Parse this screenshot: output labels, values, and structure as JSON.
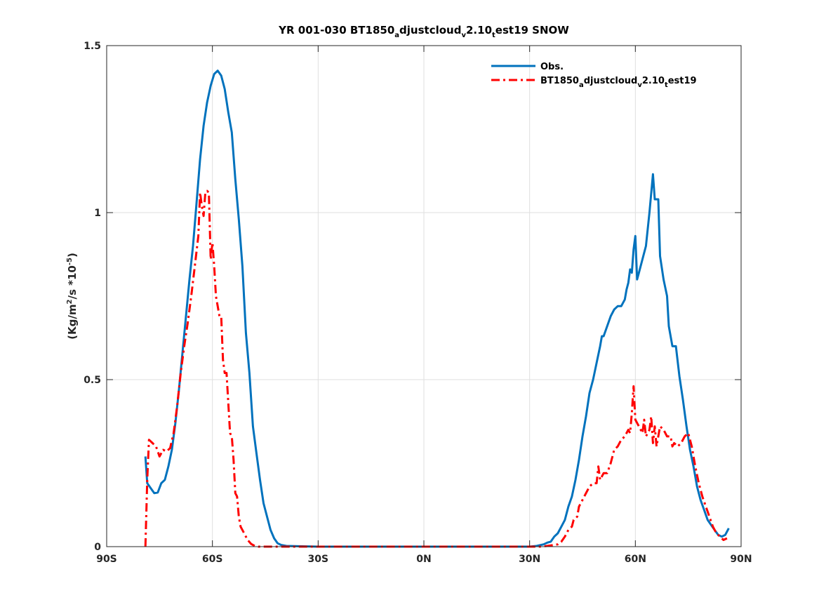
{
  "chart_data": {
    "type": "line",
    "title": {
      "prefix": "YR 001-030 BT1850",
      "sub1": "a",
      "mid1": "djustcloud",
      "sub2": "v",
      "mid2": "2.10",
      "sub3": "t",
      "suffix": "est19 SNOW"
    },
    "ylabel": {
      "part1": "(Kg/m",
      "sup1": "2",
      "part2": "/s *10",
      "sup2": "-5",
      "part3": ")"
    },
    "xlim": [
      -90,
      90
    ],
    "ylim": [
      0,
      1.5
    ],
    "grid": true,
    "legend_position": "top-right",
    "x_ticks": [
      {
        "value": -90,
        "label": "90S"
      },
      {
        "value": -60,
        "label": "60S"
      },
      {
        "value": -30,
        "label": "30S"
      },
      {
        "value": 0,
        "label": "0N"
      },
      {
        "value": 30,
        "label": "30N"
      },
      {
        "value": 60,
        "label": "60N"
      },
      {
        "value": 90,
        "label": "90N"
      }
    ],
    "y_ticks": [
      {
        "value": 0,
        "label": "0"
      },
      {
        "value": 0.5,
        "label": "0.5"
      },
      {
        "value": 1,
        "label": "1"
      },
      {
        "value": 1.5,
        "label": "1.5"
      }
    ],
    "series": [
      {
        "legend": {
          "text": "Obs."
        },
        "color": "#0072BD",
        "style": "solid",
        "points": [
          [
            -79,
            0.27
          ],
          [
            -78.5,
            0.19
          ],
          [
            -77.5,
            0.175
          ],
          [
            -76.5,
            0.16
          ],
          [
            -75.5,
            0.162
          ],
          [
            -74.5,
            0.19
          ],
          [
            -73.5,
            0.2
          ],
          [
            -72.5,
            0.24
          ],
          [
            -71.5,
            0.29
          ],
          [
            -70.5,
            0.37
          ],
          [
            -69.5,
            0.47
          ],
          [
            -68.5,
            0.58
          ],
          [
            -67.5,
            0.69
          ],
          [
            -66.5,
            0.8
          ],
          [
            -65.5,
            0.9
          ],
          [
            -64.5,
            1.03
          ],
          [
            -63.5,
            1.16
          ],
          [
            -62.5,
            1.26
          ],
          [
            -61.5,
            1.33
          ],
          [
            -60.5,
            1.38
          ],
          [
            -59.5,
            1.415
          ],
          [
            -58.5,
            1.425
          ],
          [
            -57.5,
            1.41
          ],
          [
            -56.5,
            1.37
          ],
          [
            -55.5,
            1.3
          ],
          [
            -54.5,
            1.24
          ],
          [
            -53.5,
            1.1
          ],
          [
            -52.5,
            0.98
          ],
          [
            -51.5,
            0.84
          ],
          [
            -50.5,
            0.64
          ],
          [
            -49.5,
            0.52
          ],
          [
            -48.5,
            0.36
          ],
          [
            -47.5,
            0.28
          ],
          [
            -46.5,
            0.2
          ],
          [
            -45.5,
            0.13
          ],
          [
            -44.5,
            0.09
          ],
          [
            -43.5,
            0.05
          ],
          [
            -42.5,
            0.025
          ],
          [
            -41.5,
            0.01
          ],
          [
            -40.5,
            0.005
          ],
          [
            -39,
            0.002
          ],
          [
            -30,
            0
          ],
          [
            0,
            0
          ],
          [
            29,
            0
          ],
          [
            30,
            0
          ],
          [
            32,
            0.002
          ],
          [
            34,
            0.007
          ],
          [
            35,
            0.012
          ],
          [
            36,
            0.015
          ],
          [
            37,
            0.03
          ],
          [
            38,
            0.04
          ],
          [
            39,
            0.06
          ],
          [
            40,
            0.08
          ],
          [
            41,
            0.12
          ],
          [
            42,
            0.15
          ],
          [
            43,
            0.2
          ],
          [
            44,
            0.26
          ],
          [
            45,
            0.33
          ],
          [
            46,
            0.39
          ],
          [
            47,
            0.46
          ],
          [
            48,
            0.5
          ],
          [
            49,
            0.55
          ],
          [
            50,
            0.6
          ],
          [
            50.5,
            0.63
          ],
          [
            51,
            0.63
          ],
          [
            52,
            0.66
          ],
          [
            53,
            0.69
          ],
          [
            54,
            0.71
          ],
          [
            55,
            0.72
          ],
          [
            56,
            0.72
          ],
          [
            57,
            0.74
          ],
          [
            57.5,
            0.77
          ],
          [
            58,
            0.79
          ],
          [
            58.5,
            0.83
          ],
          [
            59,
            0.82
          ],
          [
            59.5,
            0.89
          ],
          [
            60,
            0.93
          ],
          [
            60.5,
            0.8
          ],
          [
            61,
            0.82
          ],
          [
            62,
            0.86
          ],
          [
            63,
            0.9
          ],
          [
            64,
            1.0
          ],
          [
            65,
            1.115
          ],
          [
            65.5,
            1.04
          ],
          [
            66.5,
            1.04
          ],
          [
            67,
            0.87
          ],
          [
            68,
            0.8
          ],
          [
            69,
            0.75
          ],
          [
            69.5,
            0.66
          ],
          [
            70.5,
            0.6
          ],
          [
            71.5,
            0.6
          ],
          [
            72.5,
            0.51
          ],
          [
            73.5,
            0.44
          ],
          [
            74.5,
            0.36
          ],
          [
            75.5,
            0.29
          ],
          [
            76.5,
            0.24
          ],
          [
            77.5,
            0.18
          ],
          [
            78.5,
            0.14
          ],
          [
            79.5,
            0.11
          ],
          [
            80.5,
            0.08
          ],
          [
            81.5,
            0.065
          ],
          [
            82.5,
            0.05
          ],
          [
            83.5,
            0.035
          ],
          [
            84.5,
            0.03
          ],
          [
            85.5,
            0.035
          ],
          [
            86.5,
            0.055
          ]
        ]
      },
      {
        "legend": {
          "prefix": "BT1850",
          "sub1": "a",
          "mid1": "djustcloud",
          "sub2": "v",
          "mid2": "2.10",
          "sub3": "t",
          "suffix": "est19"
        },
        "color": "#FF0000",
        "style": "dashdot",
        "points": [
          [
            -79,
            0
          ],
          [
            -78.5,
            0.2
          ],
          [
            -78,
            0.32
          ],
          [
            -77,
            0.31
          ],
          [
            -76,
            0.3
          ],
          [
            -75,
            0.27
          ],
          [
            -74,
            0.29
          ],
          [
            -73,
            0.285
          ],
          [
            -72,
            0.295
          ],
          [
            -71,
            0.34
          ],
          [
            -70,
            0.42
          ],
          [
            -69,
            0.52
          ],
          [
            -68,
            0.6
          ],
          [
            -67,
            0.67
          ],
          [
            -66,
            0.75
          ],
          [
            -65,
            0.84
          ],
          [
            -64,
            0.93
          ],
          [
            -63.5,
            1.06
          ],
          [
            -63,
            1.02
          ],
          [
            -62.5,
            0.99
          ],
          [
            -62,
            1.06
          ],
          [
            -61.5,
            1.065
          ],
          [
            -61,
            1.06
          ],
          [
            -60.5,
            0.86
          ],
          [
            -60,
            0.91
          ],
          [
            -59.5,
            0.84
          ],
          [
            -59,
            0.75
          ],
          [
            -58,
            0.69
          ],
          [
            -57.5,
            0.69
          ],
          [
            -57,
            0.56
          ],
          [
            -56.5,
            0.52
          ],
          [
            -56,
            0.52
          ],
          [
            -55.5,
            0.43
          ],
          [
            -55,
            0.34
          ],
          [
            -54.5,
            0.33
          ],
          [
            -54,
            0.26
          ],
          [
            -53.5,
            0.16
          ],
          [
            -53,
            0.15
          ],
          [
            -52.5,
            0.09
          ],
          [
            -52,
            0.06
          ],
          [
            -51,
            0.04
          ],
          [
            -50,
            0.02
          ],
          [
            -49,
            0.008
          ],
          [
            -48,
            0.002
          ],
          [
            -47,
            0
          ],
          [
            0,
            0
          ],
          [
            33,
            0
          ],
          [
            35,
            0.002
          ],
          [
            37,
            0.005
          ],
          [
            38,
            0.007
          ],
          [
            39,
            0.015
          ],
          [
            40,
            0.03
          ],
          [
            41,
            0.05
          ],
          [
            42,
            0.06
          ],
          [
            42.5,
            0.08
          ],
          [
            43.5,
            0.09
          ],
          [
            44,
            0.12
          ],
          [
            45,
            0.14
          ],
          [
            46,
            0.16
          ],
          [
            47,
            0.18
          ],
          [
            48,
            0.19
          ],
          [
            49,
            0.19
          ],
          [
            49.5,
            0.24
          ],
          [
            50,
            0.2
          ],
          [
            51,
            0.22
          ],
          [
            52,
            0.22
          ],
          [
            53,
            0.25
          ],
          [
            54,
            0.29
          ],
          [
            55,
            0.3
          ],
          [
            56,
            0.32
          ],
          [
            57,
            0.33
          ],
          [
            58,
            0.35
          ],
          [
            58.5,
            0.34
          ],
          [
            59,
            0.4
          ],
          [
            59.5,
            0.48
          ],
          [
            60,
            0.38
          ],
          [
            61,
            0.36
          ],
          [
            62,
            0.34
          ],
          [
            62.5,
            0.38
          ],
          [
            63,
            0.33
          ],
          [
            64,
            0.35
          ],
          [
            64.5,
            0.39
          ],
          [
            65,
            0.31
          ],
          [
            65.5,
            0.36
          ],
          [
            66,
            0.3
          ],
          [
            67,
            0.36
          ],
          [
            68,
            0.35
          ],
          [
            69,
            0.33
          ],
          [
            70,
            0.33
          ],
          [
            70.5,
            0.3
          ],
          [
            71,
            0.31
          ],
          [
            72,
            0.3
          ],
          [
            73,
            0.31
          ],
          [
            74,
            0.33
          ],
          [
            75,
            0.34
          ],
          [
            76,
            0.3
          ],
          [
            77,
            0.24
          ],
          [
            78,
            0.19
          ],
          [
            79,
            0.15
          ],
          [
            80,
            0.12
          ],
          [
            81,
            0.09
          ],
          [
            82,
            0.06
          ],
          [
            83,
            0.04
          ],
          [
            84,
            0.03
          ],
          [
            85,
            0.02
          ],
          [
            86,
            0.025
          ]
        ]
      }
    ]
  }
}
